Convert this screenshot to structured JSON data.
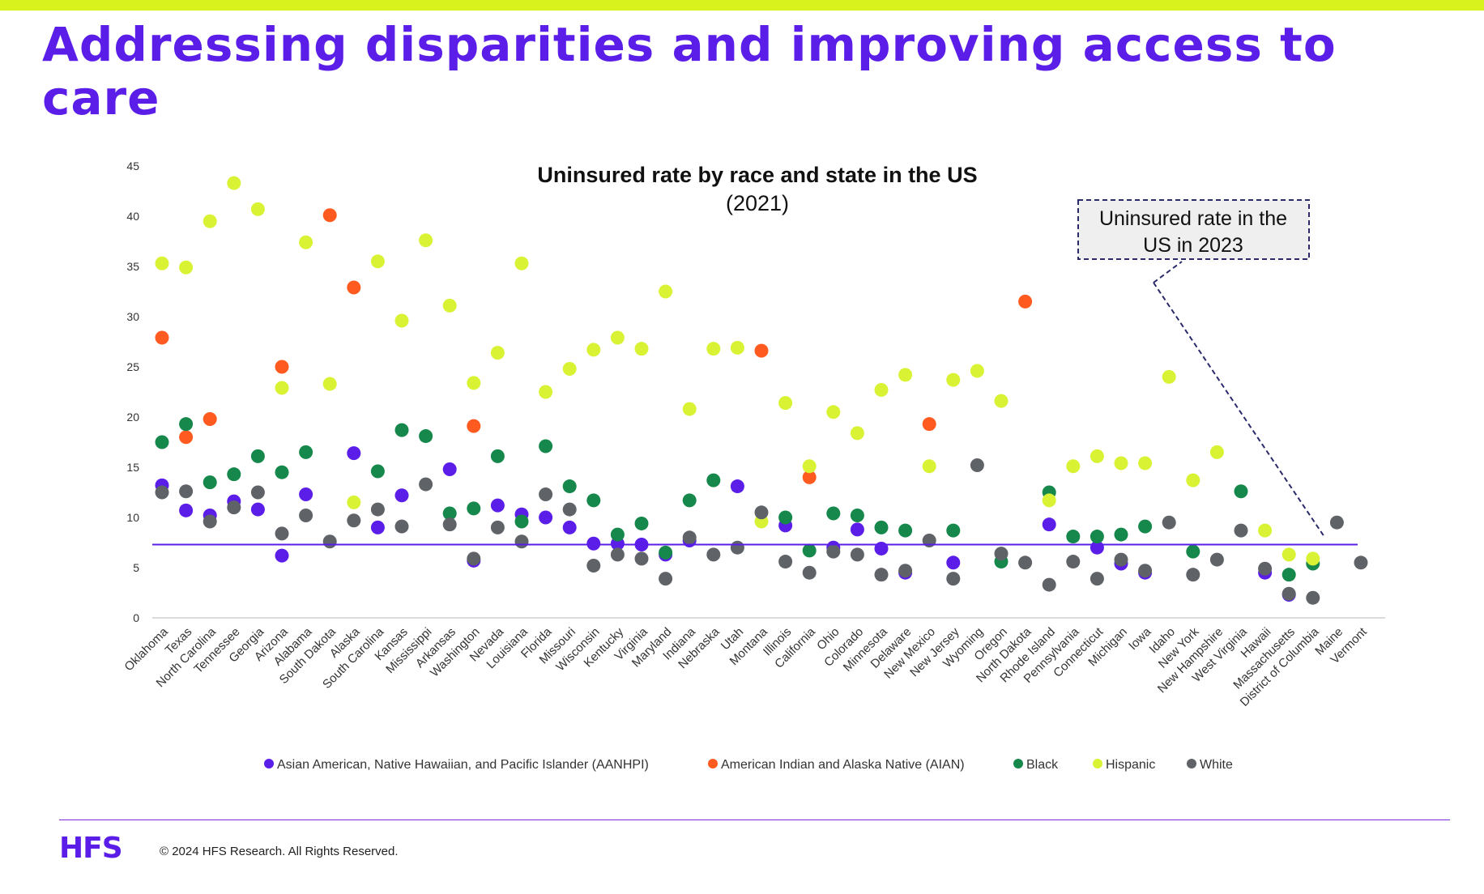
{
  "slide": {
    "headline": "Addressing disparities and improving access to care",
    "brand": "HFS",
    "copyright": "© 2024 HFS Research. All Rights Reserved."
  },
  "chart_data": {
    "type": "scatter",
    "title": "Uninsured rate by race and state in the US",
    "subtitle": "(2021)",
    "xlabel": "",
    "ylabel": "",
    "ylim": [
      0,
      45
    ],
    "yticks": [
      0,
      5,
      10,
      15,
      20,
      25,
      30,
      35,
      40,
      45
    ],
    "grid": false,
    "legend_position": "bottom",
    "categories": [
      "Oklahoma",
      "Texas",
      "North Carolina",
      "Tennessee",
      "Georgia",
      "Arizona",
      "Alabama",
      "South Dakota",
      "Alaska",
      "South Carolina",
      "Kansas",
      "Mississippi",
      "Arkansas",
      "Washington",
      "Nevada",
      "Louisiana",
      "Florida",
      "Missouri",
      "Wisconsin",
      "Kentucky",
      "Virginia",
      "Maryland",
      "Indiana",
      "Nebraska",
      "Utah",
      "Montana",
      "Illinois",
      "California",
      "Ohio",
      "Colorado",
      "Minnesota",
      "Delaware",
      "New Mexico",
      "New Jersey",
      "Wyoming",
      "Oregon",
      "North Dakota",
      "Rhode Island",
      "Pennsylvania",
      "Connecticut",
      "Michigan",
      "Iowa",
      "Idaho",
      "New York",
      "New Hampshire",
      "West Virginia",
      "Hawaii",
      "Massachusetts",
      "District of Columbia",
      "Maine",
      "Vermont"
    ],
    "series": [
      {
        "name": "Asian American, Native Hawaiian, and Pacific Islander (AANHPI)",
        "color": "#5b1ee8",
        "values": [
          13.2,
          10.7,
          10.2,
          11.6,
          10.8,
          6.2,
          12.3,
          null,
          16.4,
          9.0,
          12.2,
          null,
          14.8,
          5.7,
          11.2,
          10.3,
          10.0,
          9.0,
          7.4,
          7.4,
          7.3,
          6.3,
          7.7,
          null,
          13.1,
          null,
          9.2,
          null,
          7.0,
          8.8,
          6.9,
          4.5,
          null,
          5.5,
          null,
          null,
          null,
          9.3,
          null,
          7.0,
          5.4,
          4.5,
          null,
          null,
          null,
          null,
          4.5,
          2.3,
          null,
          null,
          null
        ]
      },
      {
        "name": "American Indian and Alaska Native (AIAN)",
        "color": "#ff5a1f",
        "values": [
          27.9,
          18.0,
          19.8,
          null,
          null,
          25.0,
          null,
          40.1,
          32.9,
          null,
          null,
          null,
          null,
          19.1,
          null,
          null,
          null,
          null,
          null,
          null,
          null,
          null,
          null,
          null,
          null,
          26.6,
          null,
          14.0,
          null,
          null,
          null,
          null,
          19.3,
          null,
          null,
          null,
          31.5,
          null,
          null,
          null,
          null,
          null,
          null,
          null,
          null,
          null,
          null,
          null,
          null,
          null,
          null
        ]
      },
      {
        "name": "Black",
        "color": "#16884b",
        "values": [
          17.5,
          19.3,
          13.5,
          14.3,
          16.1,
          14.5,
          16.5,
          null,
          null,
          14.6,
          18.7,
          18.1,
          10.4,
          10.9,
          16.1,
          9.6,
          17.1,
          13.1,
          11.7,
          8.3,
          9.4,
          6.5,
          11.7,
          13.7,
          null,
          null,
          10.0,
          6.7,
          10.4,
          10.2,
          9.0,
          8.7,
          null,
          8.7,
          null,
          5.6,
          null,
          12.5,
          8.1,
          8.1,
          8.3,
          9.1,
          null,
          6.6,
          null,
          12.6,
          null,
          4.3,
          5.4,
          null,
          null
        ]
      },
      {
        "name": "Hispanic",
        "color": "#d9f334",
        "values": [
          35.3,
          34.9,
          39.5,
          43.3,
          40.7,
          22.9,
          37.4,
          23.3,
          11.5,
          35.5,
          29.6,
          37.6,
          31.1,
          23.4,
          26.4,
          35.3,
          22.5,
          24.8,
          26.7,
          27.9,
          26.8,
          32.5,
          20.8,
          26.8,
          26.9,
          9.6,
          21.4,
          15.1,
          20.5,
          18.4,
          22.7,
          24.2,
          15.1,
          23.7,
          24.6,
          21.6,
          null,
          11.7,
          15.1,
          16.1,
          15.4,
          15.4,
          24.0,
          13.7,
          16.5,
          null,
          8.7,
          6.3,
          5.9,
          null,
          null
        ]
      },
      {
        "name": "White",
        "color": "#5f6368",
        "values": [
          12.5,
          12.6,
          9.6,
          11.0,
          12.5,
          8.4,
          10.2,
          7.6,
          9.7,
          10.8,
          9.1,
          13.3,
          9.3,
          5.9,
          9.0,
          7.6,
          12.3,
          10.8,
          5.2,
          6.3,
          5.9,
          3.9,
          8.0,
          6.3,
          7.0,
          10.5,
          5.6,
          4.5,
          6.6,
          6.3,
          4.3,
          4.7,
          7.7,
          3.9,
          15.2,
          6.4,
          5.5,
          3.3,
          5.6,
          3.9,
          5.8,
          4.7,
          9.5,
          4.3,
          5.8,
          8.7,
          4.9,
          2.4,
          2.0,
          9.5,
          5.5
        ]
      }
    ],
    "reference_line": {
      "value": 7.3,
      "color": "#5b1ee8"
    },
    "annotation": {
      "text_lines": [
        "Uninsured rate in the",
        "US in 2023"
      ]
    }
  }
}
